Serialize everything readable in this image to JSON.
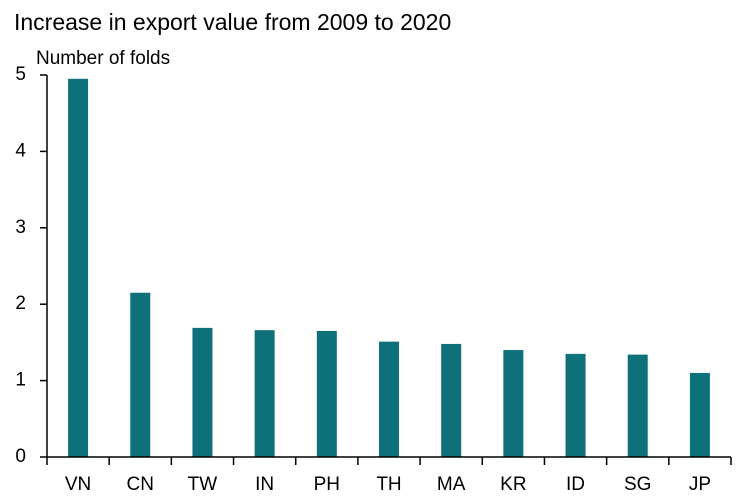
{
  "chart_data": {
    "type": "bar",
    "title": "Increase in export value from 2009 to 2020",
    "y_label": "Number of folds",
    "categories": [
      "VN",
      "CN",
      "TW",
      "IN",
      "PH",
      "TH",
      "MA",
      "KR",
      "ID",
      "SG",
      "JP"
    ],
    "values": [
      4.95,
      2.15,
      1.69,
      1.66,
      1.65,
      1.51,
      1.48,
      1.4,
      1.35,
      1.34,
      1.1
    ],
    "color": "#0e717a",
    "ylim": [
      0,
      5
    ],
    "yticks": [
      0,
      1,
      2,
      3,
      4,
      5
    ],
    "grid": false
  }
}
